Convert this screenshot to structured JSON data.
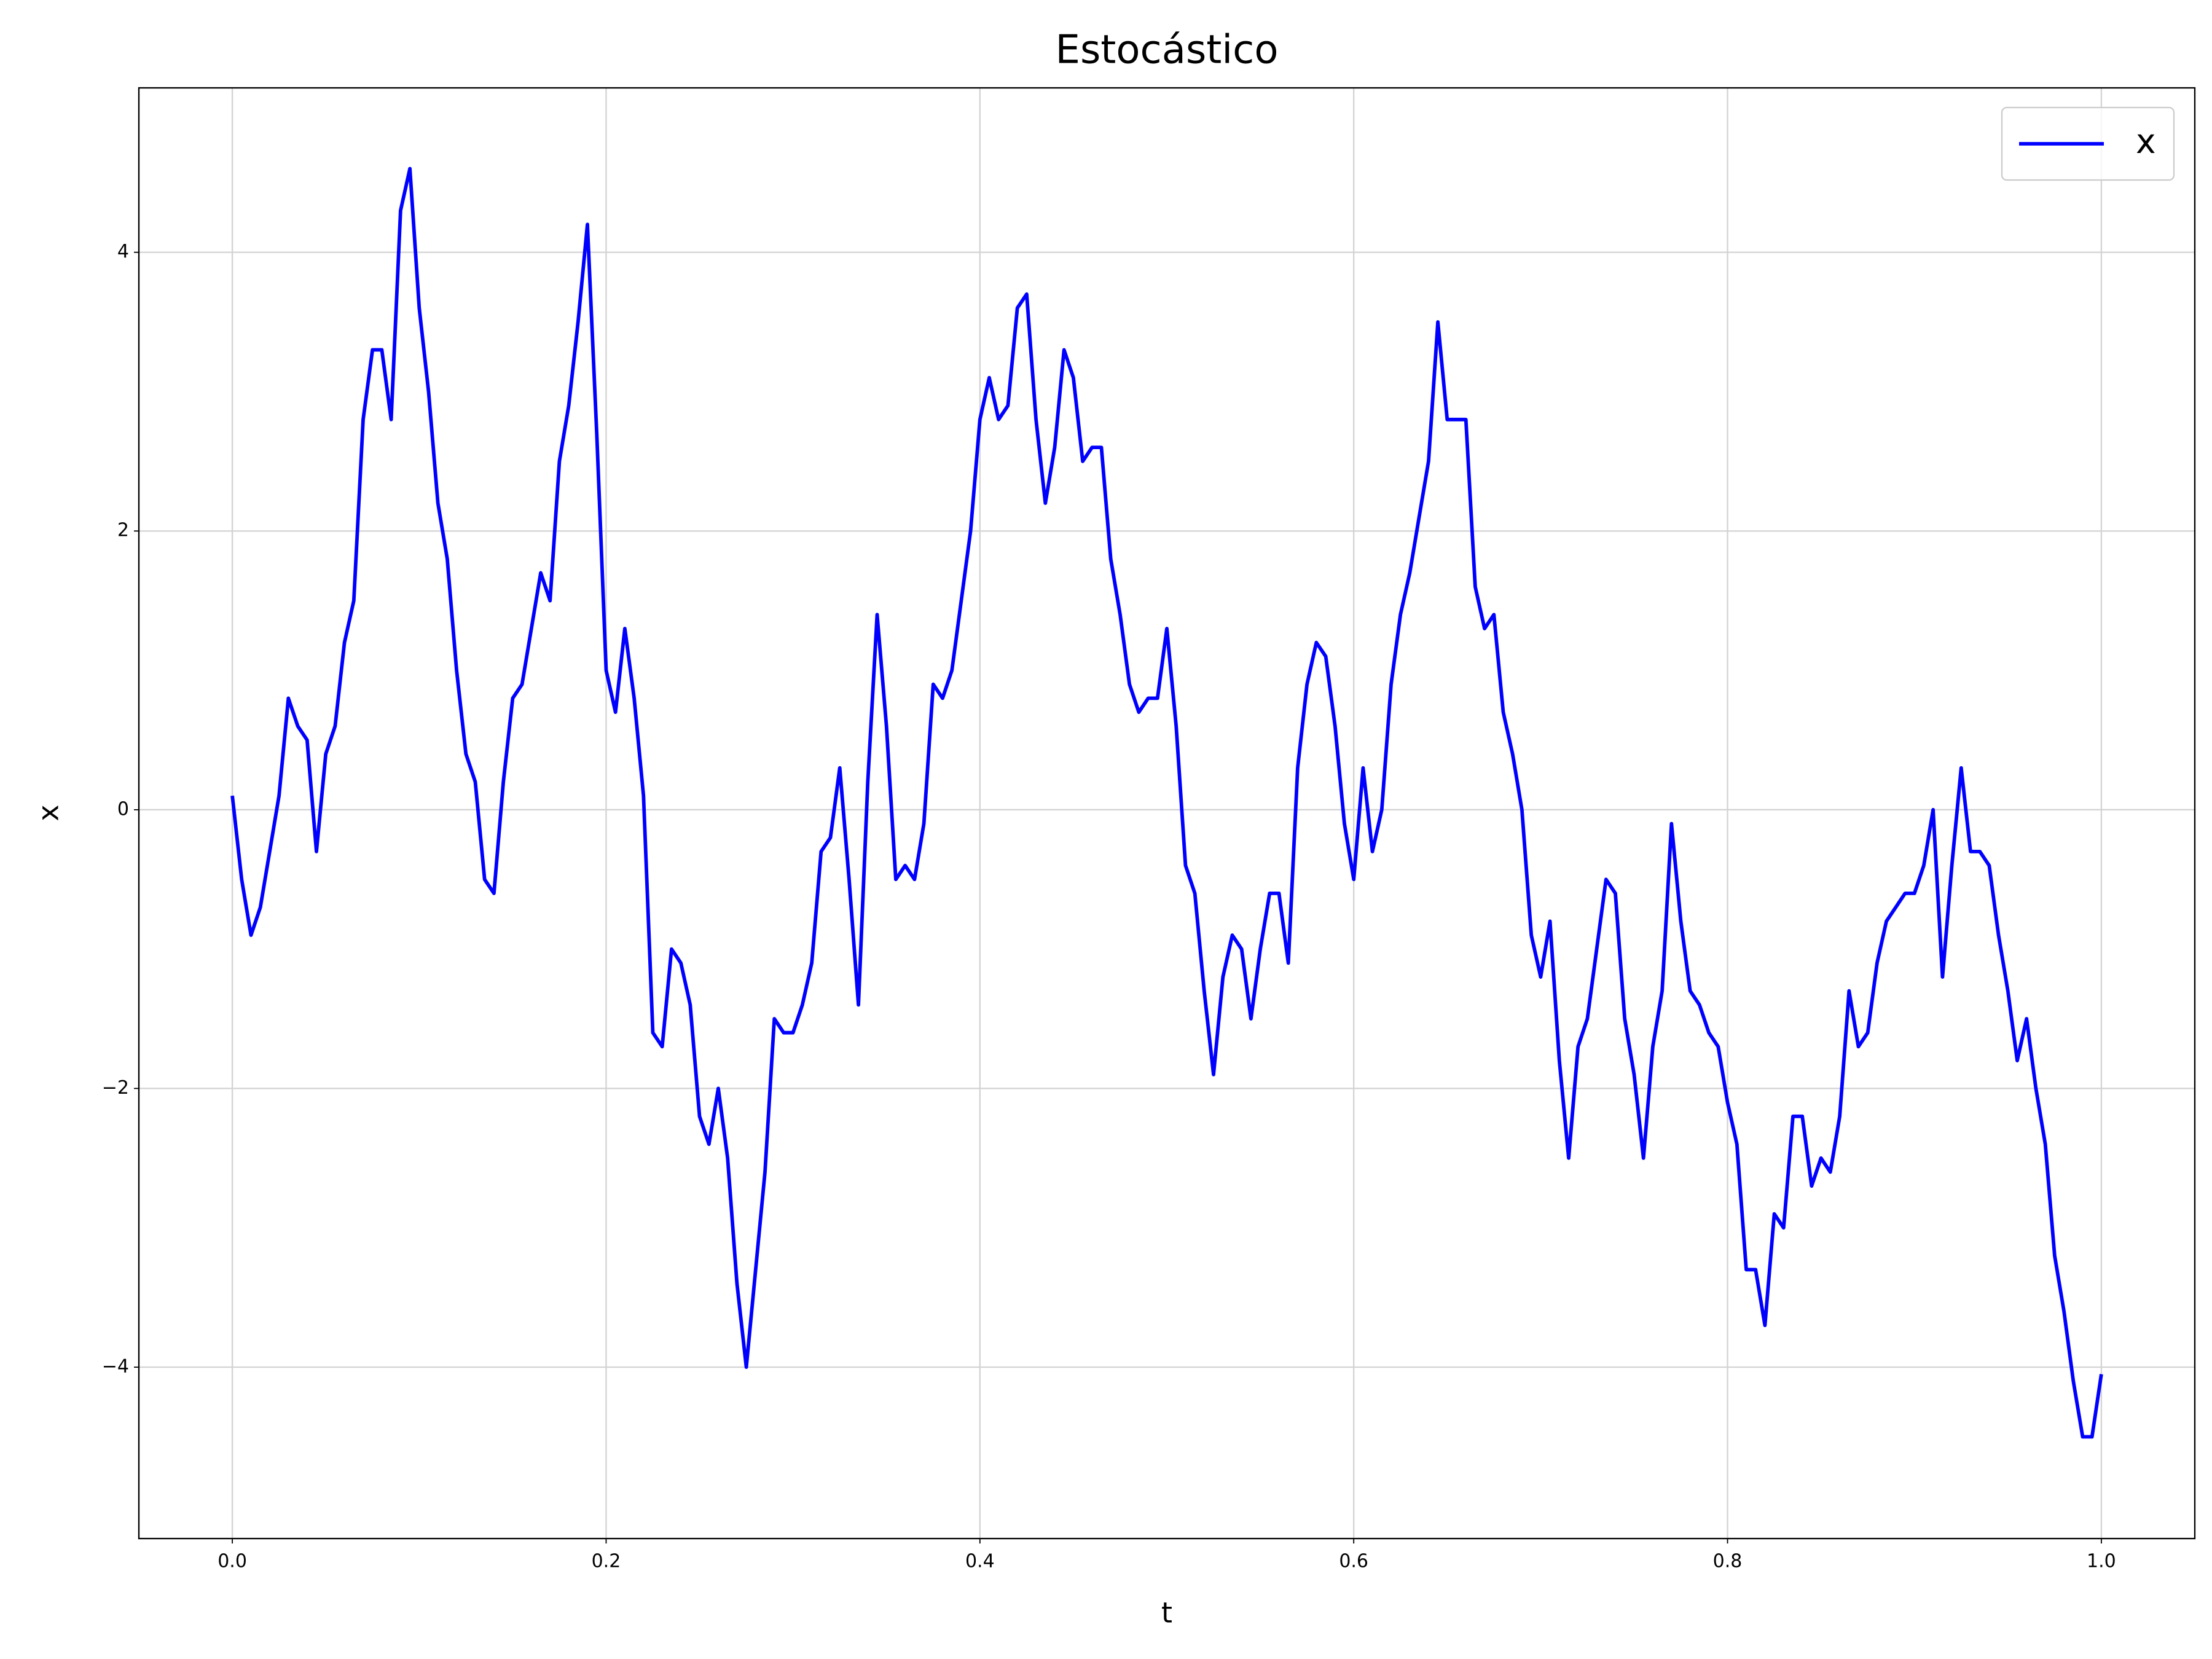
{
  "chart_data": {
    "type": "line",
    "title": "Estocástico",
    "xlabel": "t",
    "ylabel": "x",
    "x": [
      0,
      0.005,
      0.01,
      0.015,
      0.02,
      0.025,
      0.03,
      0.035,
      0.04,
      0.045,
      0.05,
      0.055,
      0.06,
      0.065,
      0.07,
      0.075,
      0.08,
      0.085,
      0.09,
      0.095,
      0.1,
      0.105,
      0.11,
      0.115,
      0.12,
      0.125,
      0.13,
      0.135,
      0.14,
      0.145,
      0.15,
      0.155,
      0.16,
      0.165,
      0.17,
      0.175,
      0.18,
      0.185,
      0.19,
      0.195,
      0.2,
      0.205,
      0.21,
      0.215,
      0.22,
      0.225,
      0.23,
      0.235,
      0.24,
      0.245,
      0.25,
      0.255,
      0.26,
      0.265,
      0.27,
      0.275,
      0.28,
      0.285,
      0.29,
      0.295,
      0.3,
      0.305,
      0.31,
      0.315,
      0.32,
      0.325,
      0.33,
      0.335,
      0.34,
      0.345,
      0.35,
      0.355,
      0.36,
      0.365,
      0.37,
      0.375,
      0.38,
      0.385,
      0.39,
      0.395,
      0.4,
      0.405,
      0.41,
      0.415,
      0.42,
      0.425,
      0.43,
      0.435,
      0.44,
      0.445,
      0.45,
      0.455,
      0.46,
      0.465,
      0.47,
      0.475,
      0.48,
      0.485,
      0.49,
      0.495,
      0.5,
      0.505,
      0.51,
      0.515,
      0.52,
      0.525,
      0.53,
      0.535,
      0.54,
      0.545,
      0.55,
      0.555,
      0.56,
      0.565,
      0.57,
      0.575,
      0.58,
      0.585,
      0.59,
      0.595,
      0.6,
      0.605,
      0.61,
      0.615,
      0.62,
      0.625,
      0.63,
      0.635,
      0.64,
      0.645,
      0.65,
      0.655,
      0.66,
      0.665,
      0.67,
      0.675,
      0.68,
      0.685,
      0.69,
      0.695,
      0.7,
      0.705,
      0.71,
      0.715,
      0.72,
      0.725,
      0.73,
      0.735,
      0.74,
      0.745,
      0.75,
      0.755,
      0.76,
      0.765,
      0.77,
      0.775,
      0.78,
      0.785,
      0.79,
      0.795,
      0.8,
      0.805,
      0.81,
      0.815,
      0.82,
      0.825,
      0.83,
      0.835,
      0.84,
      0.845,
      0.85,
      0.855,
      0.86,
      0.865,
      0.87,
      0.875,
      0.88,
      0.885,
      0.89,
      0.895,
      0.9,
      0.905,
      0.91,
      0.915,
      0.92,
      0.925,
      0.93,
      0.935,
      0.94,
      0.945,
      0.95,
      0.955,
      0.96,
      0.965,
      0.97,
      0.975,
      0.98,
      0.985,
      0.99,
      0.995,
      1.0
    ],
    "series": [
      {
        "name": "x",
        "color": "#0000ff",
        "values": [
          0.1,
          -0.5,
          -0.9,
          -0.7,
          -0.3,
          0.1,
          0.8,
          0.6,
          0.5,
          -0.3,
          0.4,
          0.6,
          1.2,
          1.5,
          2.8,
          3.3,
          3.3,
          2.8,
          4.3,
          4.6,
          3.6,
          3.0,
          2.2,
          1.8,
          1.0,
          0.4,
          0.2,
          -0.5,
          -0.6,
          0.2,
          0.8,
          0.9,
          1.3,
          1.7,
          1.5,
          2.5,
          2.9,
          3.5,
          4.2,
          2.7,
          1.0,
          0.7,
          1.3,
          0.8,
          0.1,
          -1.6,
          -1.7,
          -1.0,
          -1.1,
          -1.4,
          -2.2,
          -2.4,
          -2.0,
          -2.5,
          -3.4,
          -4.0,
          -3.3,
          -2.6,
          -1.5,
          -1.6,
          -1.6,
          -1.4,
          -1.1,
          -0.3,
          -0.2,
          0.3,
          -0.5,
          -1.4,
          0.2,
          1.4,
          0.6,
          -0.5,
          -0.4,
          -0.5,
          -0.1,
          0.9,
          0.8,
          1.0,
          1.5,
          2.0,
          2.8,
          3.1,
          2.8,
          2.9,
          3.6,
          3.7,
          2.8,
          2.2,
          2.6,
          3.3,
          3.1,
          2.5,
          2.6,
          2.6,
          1.8,
          1.4,
          0.9,
          0.7,
          0.8,
          0.8,
          1.3,
          0.6,
          -0.4,
          -0.6,
          -1.3,
          -1.9,
          -1.2,
          -0.9,
          -1.0,
          -1.5,
          -1.0,
          -0.6,
          -0.6,
          -1.1,
          0.3,
          0.9,
          1.2,
          1.1,
          0.6,
          -0.1,
          -0.5,
          0.3,
          -0.3,
          0.0,
          0.9,
          1.4,
          1.7,
          2.1,
          2.5,
          3.5,
          2.8,
          2.8,
          2.8,
          1.6,
          1.3,
          1.4,
          0.7,
          0.4,
          0.0,
          -0.9,
          -1.2,
          -0.8,
          -1.8,
          -2.5,
          -1.7,
          -1.5,
          -1.0,
          -0.5,
          -0.6,
          -1.5,
          -1.9,
          -2.5,
          -1.7,
          -1.3,
          -0.1,
          -0.8,
          -1.3,
          -1.4,
          -1.6,
          -1.7,
          -2.1,
          -2.4,
          -3.3,
          -3.3,
          -3.7,
          -2.9,
          -3.0,
          -2.2,
          -2.2,
          -2.7,
          -2.5,
          -2.6,
          -2.2,
          -1.3,
          -1.7,
          -1.6,
          -1.1,
          -0.8,
          -0.7,
          -0.6,
          -0.6,
          -0.4,
          0.0,
          -1.2,
          -0.4,
          0.3,
          -0.3,
          -0.3,
          -0.4,
          -0.9,
          -1.3,
          -1.8,
          -1.5,
          -2.0,
          -2.4,
          -3.2,
          -3.6,
          -4.1,
          -4.5,
          -4.5,
          -4.05
        ]
      }
    ],
    "xlim": [
      -0.05,
      1.05
    ],
    "ylim": [
      -5.23,
      5.18
    ],
    "xticks": [
      {
        "value": 0,
        "label": "0.0"
      },
      {
        "value": 0.2,
        "label": "0.2"
      },
      {
        "value": 0.4,
        "label": "0.4"
      },
      {
        "value": 0.6,
        "label": "0.6"
      },
      {
        "value": 0.8,
        "label": "0.8"
      },
      {
        "value": 1.0,
        "label": "1.0"
      }
    ],
    "yticks": [
      {
        "value": -4,
        "label": "−4"
      },
      {
        "value": -2,
        "label": "−2"
      },
      0,
      2,
      4
    ],
    "grid": true,
    "legend": "upper right"
  }
}
